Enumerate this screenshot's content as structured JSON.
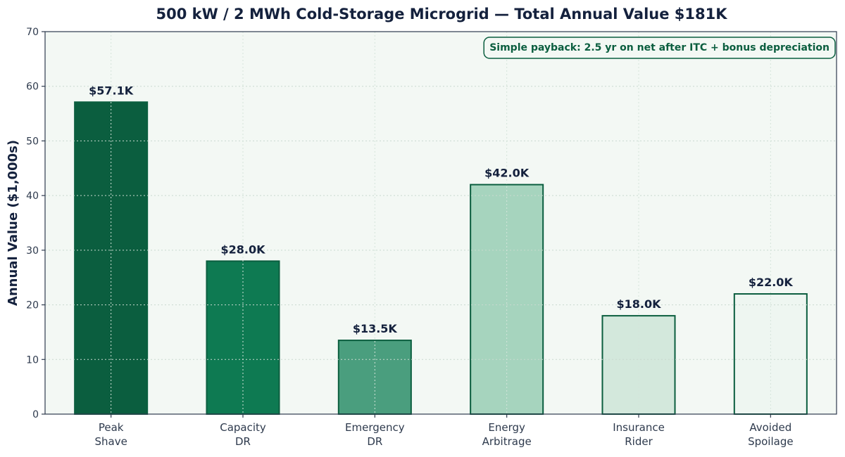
{
  "chart_data": {
    "type": "bar",
    "title": "500 kW / 2 MWh Cold-Storage Microgrid — Total Annual Value $181K",
    "xlabel": "",
    "ylabel": "Annual Value ($1,000s)",
    "ylim": [
      0,
      70
    ],
    "yticks": [
      0,
      10,
      20,
      30,
      40,
      50,
      60,
      70
    ],
    "grid": true,
    "categories": [
      [
        "Peak",
        "Shave"
      ],
      [
        "Capacity",
        "DR"
      ],
      [
        "Emergency",
        "DR"
      ],
      [
        "Energy",
        "Arbitrage"
      ],
      [
        "Insurance",
        "Rider"
      ],
      [
        "Avoided",
        "Spoilage"
      ]
    ],
    "values": [
      57.1,
      28.0,
      13.5,
      42.0,
      18.0,
      22.0
    ],
    "data_labels": [
      "$57.1K",
      "$28.0K",
      "$13.5K",
      "$42.0K",
      "$18.0K",
      "$22.0K"
    ],
    "bar_colors": [
      "#0b5e3f",
      "#0e7a52",
      "#4a9e7e",
      "#a6d4be",
      "#d3e8dc",
      "#eef6f1"
    ],
    "bar_edge_color": "#0b5e3f",
    "plot_background": "#f3f8f4",
    "annotation": "Simple payback: 2.5 yr on net after ITC + bonus depreciation"
  }
}
